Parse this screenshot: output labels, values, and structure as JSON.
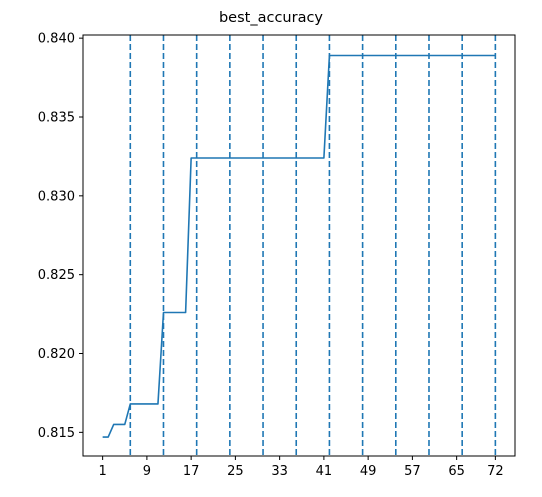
{
  "chart_data": {
    "type": "line",
    "title": "best_accuracy",
    "xlabel": "",
    "ylabel": "",
    "xlim": [
      -2.55,
      75.55
    ],
    "ylim": [
      0.8135,
      0.8402
    ],
    "x_ticks": [
      1,
      9,
      17,
      25,
      33,
      41,
      49,
      57,
      65,
      72
    ],
    "y_ticks": [
      0.815,
      0.82,
      0.825,
      0.83,
      0.835,
      0.84
    ],
    "y_tick_labels": [
      "0.815",
      "0.820",
      "0.825",
      "0.830",
      "0.835",
      "0.840"
    ],
    "grid": false,
    "line_color": "#1f77b4",
    "vlines": [
      6,
      12,
      18,
      24,
      30,
      36,
      42,
      48,
      54,
      60,
      66,
      72
    ],
    "series": [
      {
        "x": [
          1,
          2,
          3,
          4,
          5,
          6,
          7,
          8,
          9,
          10,
          11,
          12,
          13,
          14,
          15,
          16,
          17,
          18,
          19,
          20,
          21,
          22,
          23,
          24,
          25,
          26,
          27,
          28,
          29,
          30,
          31,
          32,
          33,
          34,
          35,
          36,
          37,
          38,
          39,
          40,
          41,
          42,
          43,
          44,
          45,
          46,
          47,
          48,
          49,
          50,
          51,
          52,
          53,
          54,
          55,
          56,
          57,
          58,
          59,
          60,
          61,
          62,
          63,
          64,
          65,
          66,
          67,
          68,
          69,
          70,
          71,
          72
        ],
        "y": [
          0.8147,
          0.8147,
          0.8155,
          0.8155,
          0.8155,
          0.8168,
          0.8168,
          0.8168,
          0.8168,
          0.8168,
          0.8168,
          0.8226,
          0.8226,
          0.8226,
          0.8226,
          0.8226,
          0.8324,
          0.8324,
          0.8324,
          0.8324,
          0.8324,
          0.8324,
          0.8324,
          0.8324,
          0.8324,
          0.8324,
          0.8324,
          0.8324,
          0.8324,
          0.8324,
          0.8324,
          0.8324,
          0.8324,
          0.8324,
          0.8324,
          0.8324,
          0.8324,
          0.8324,
          0.8324,
          0.8324,
          0.8324,
          0.8389,
          0.8389,
          0.8389,
          0.8389,
          0.8389,
          0.8389,
          0.8389,
          0.8389,
          0.8389,
          0.8389,
          0.8389,
          0.8389,
          0.8389,
          0.8389,
          0.8389,
          0.8389,
          0.8389,
          0.8389,
          0.8389,
          0.8389,
          0.8389,
          0.8389,
          0.8389,
          0.8389,
          0.8389,
          0.8389,
          0.8389,
          0.8389,
          0.8389,
          0.8389,
          0.8389
        ]
      }
    ]
  }
}
